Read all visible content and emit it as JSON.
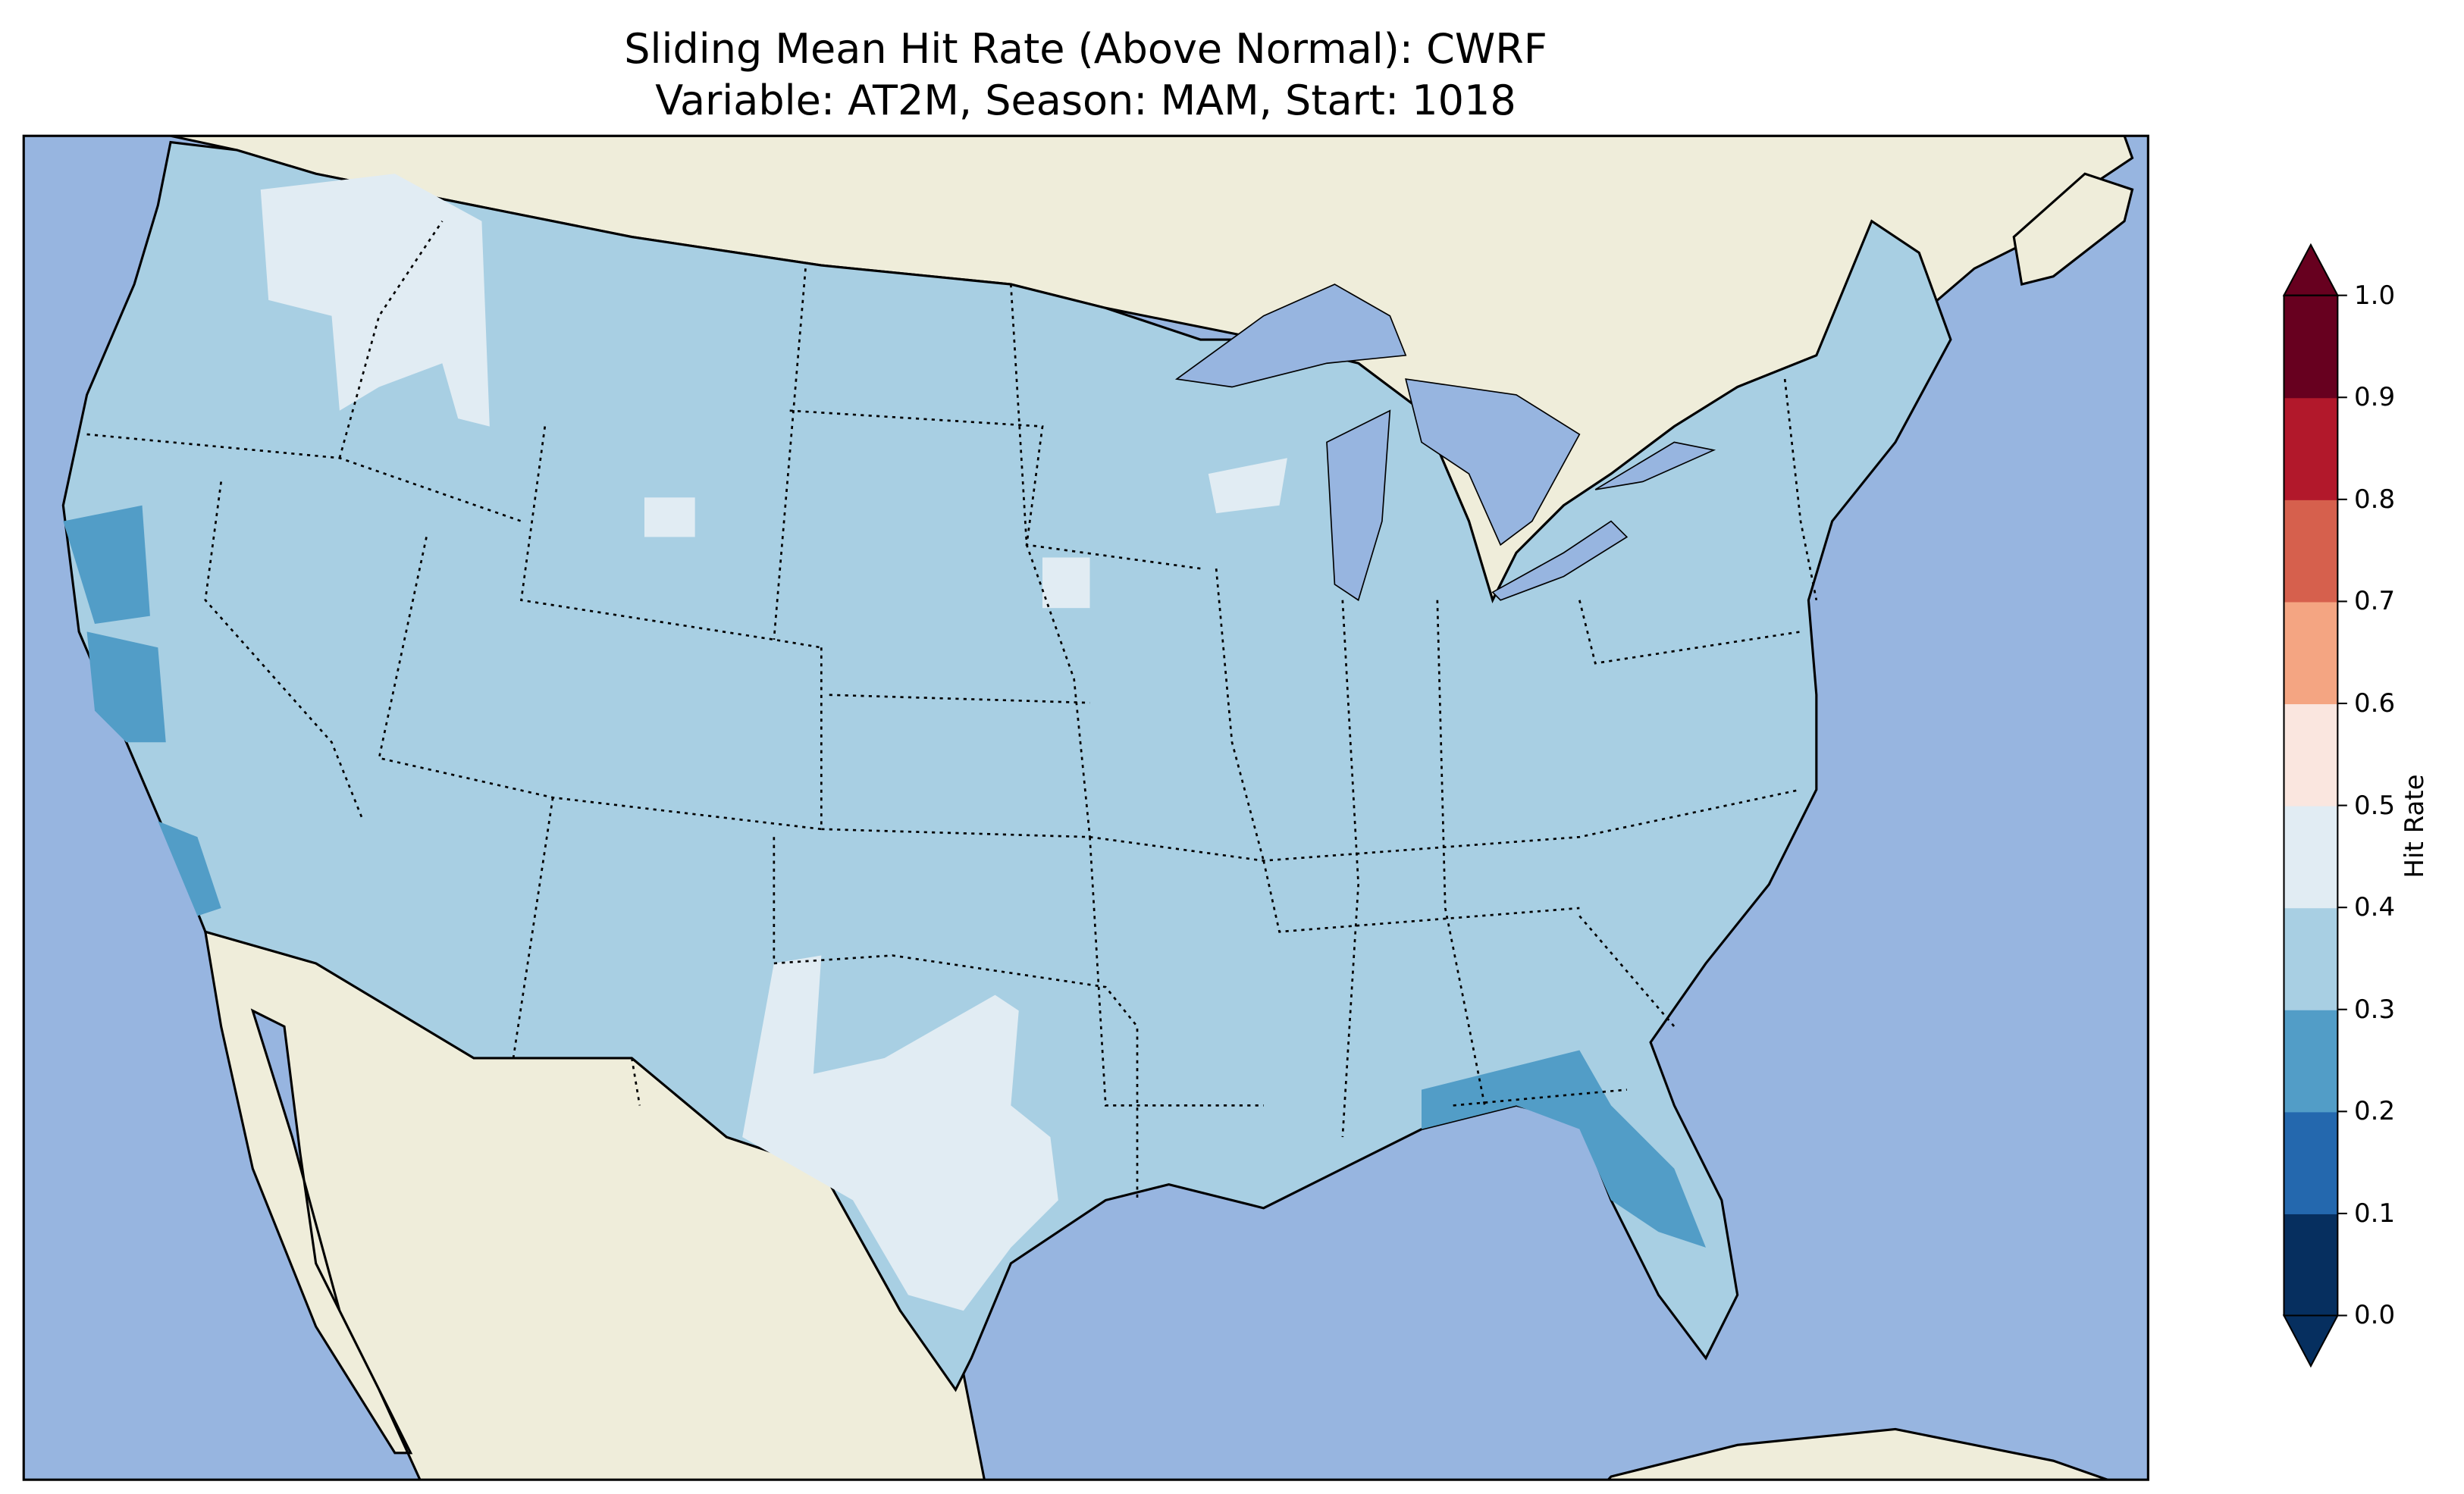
{
  "title": {
    "line1": "Sliding Mean Hit Rate (Above Normal): CWRF",
    "line2": "Variable: AT2M, Season: MAM, Start: 1018"
  },
  "chart_data": {
    "type": "heatmap",
    "map_region": "Contiguous United States",
    "background_colors": {
      "ocean": "#97b5e0",
      "land": "#efedda",
      "borders": "#000000"
    },
    "dominant_value_range": [
      0.3,
      0.4
    ],
    "regions": [
      {
        "area": "most of CONUS",
        "range": [
          0.3,
          0.4
        ]
      },
      {
        "area": "Idaho / eastern Washington / Oregon",
        "range": [
          0.4,
          0.5
        ]
      },
      {
        "area": "central Texas",
        "range": [
          0.4,
          0.5
        ]
      },
      {
        "area": "central Wyoming",
        "range": [
          0.4,
          0.5
        ]
      },
      {
        "area": "NE Wisconsin",
        "range": [
          0.4,
          0.5
        ]
      },
      {
        "area": "NW Iowa",
        "range": [
          0.4,
          0.5
        ]
      },
      {
        "area": "California coast",
        "range": [
          0.2,
          0.3
        ]
      },
      {
        "area": "Florida panhandle / west Florida",
        "range": [
          0.2,
          0.3
        ]
      }
    ],
    "colorbar": {
      "label": "Hit Rate",
      "ticks": [
        "0.0",
        "0.1",
        "0.2",
        "0.3",
        "0.4",
        "0.5",
        "0.6",
        "0.7",
        "0.8",
        "0.9",
        "1.0"
      ],
      "levels": [
        0.0,
        0.1,
        0.2,
        0.3,
        0.4,
        0.5,
        0.6,
        0.7,
        0.8,
        0.9,
        1.0
      ],
      "colors": [
        "#062f5f",
        "#2468ae",
        "#529dc7",
        "#a8cfe3",
        "#e1ecf3",
        "#fae6df",
        "#f4a582",
        "#d6604d",
        "#b2182b",
        "#67001f"
      ],
      "extend": "both"
    }
  }
}
